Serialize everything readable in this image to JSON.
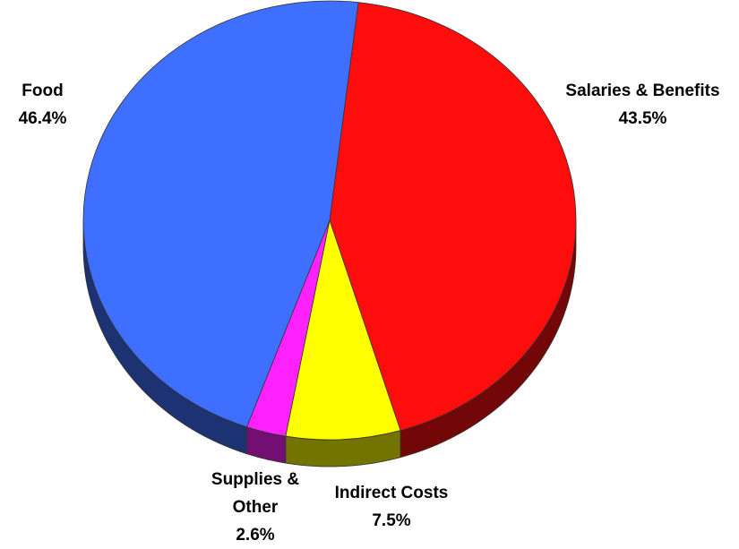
{
  "chart_data": {
    "type": "pie",
    "categories": [
      "Salaries & Benefits",
      "Indirect Costs",
      "Supplies & Other",
      "Food"
    ],
    "values": [
      43.5,
      7.5,
      2.6,
      46.4
    ],
    "value_labels": [
      "43.5%",
      "7.5%",
      "2.6%",
      "46.4%"
    ],
    "colors": [
      "#ff0d0d",
      "#ffff00",
      "#ff22ff",
      "#3f6fff"
    ]
  }
}
